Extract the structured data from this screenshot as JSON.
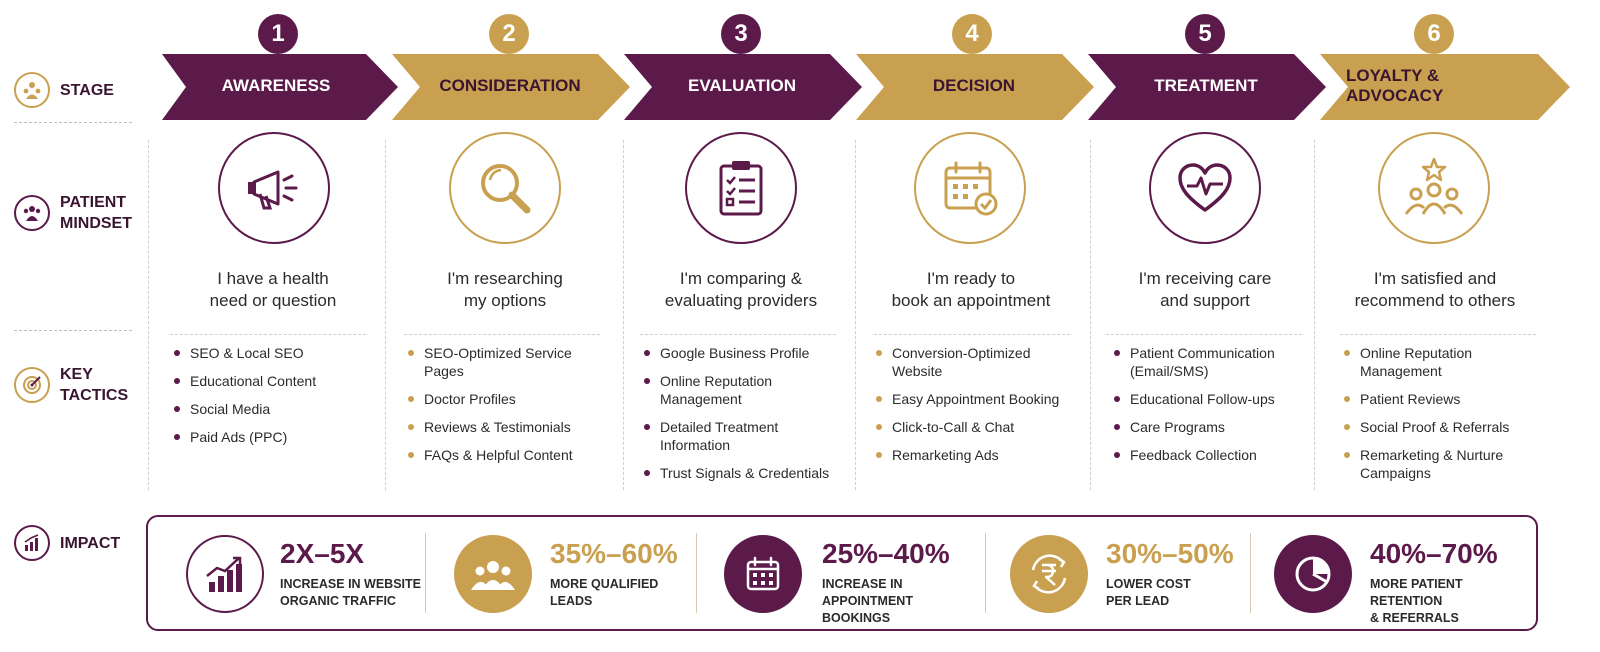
{
  "colors": {
    "plum": "#5b1a4a",
    "gold": "#c9a050",
    "plumText": "#ffffff",
    "goldText": "#3a1530"
  },
  "row_labels": {
    "stage": "STAGE",
    "mindset": [
      "PATIENT",
      "MINDSET"
    ],
    "tactics": [
      "KEY",
      "TACTICS"
    ],
    "impact": "IMPACT"
  },
  "stages": [
    {
      "num": "1",
      "title": "AWARENESS",
      "tone": "plum",
      "icon": "megaphone-icon",
      "mindset": [
        "I have a health",
        "need or question"
      ],
      "tactics": [
        "SEO & Local SEO",
        "Educational Content",
        "Social Media",
        "Paid Ads (PPC)"
      ]
    },
    {
      "num": "2",
      "title": "CONSIDERATION",
      "tone": "gold",
      "icon": "magnifier-icon",
      "mindset": [
        "I'm researching",
        "my options"
      ],
      "tactics": [
        "SEO-Optimized Service Pages",
        "Doctor Profiles",
        "Reviews & Testimonials",
        "FAQs & Helpful Content"
      ]
    },
    {
      "num": "3",
      "title": "EVALUATION",
      "tone": "plum",
      "icon": "clipboard-icon",
      "mindset": [
        "I'm comparing &",
        "evaluating providers"
      ],
      "tactics": [
        "Google Business Profile",
        "Online Reputation Management",
        "Detailed Treatment Information",
        "Trust Signals & Credentials"
      ]
    },
    {
      "num": "4",
      "title": "DECISION",
      "tone": "gold",
      "icon": "calendar-check-icon",
      "mindset": [
        "I'm ready to",
        "book an appointment"
      ],
      "tactics": [
        "Conversion-Optimized Website",
        "Easy Appointment Booking",
        "Click-to-Call & Chat",
        "Remarketing Ads"
      ]
    },
    {
      "num": "5",
      "title": "TREATMENT",
      "tone": "plum",
      "icon": "heart-pulse-icon",
      "mindset": [
        "I'm receiving care",
        "and support"
      ],
      "tactics": [
        "Patient Communication (Email/SMS)",
        "Educational Follow-ups",
        "Care Programs",
        "Feedback Collection"
      ]
    },
    {
      "num": "6",
      "title": "LOYALTY & ADVOCACY",
      "tone": "gold",
      "icon": "group-star-icon",
      "mindset": [
        "I'm satisfied and",
        "recommend to others"
      ],
      "tactics": [
        "Online Reputation Management",
        "Patient Reviews",
        "Social Proof & Referrals",
        "Remarketing & Nurture Campaigns"
      ]
    }
  ],
  "impact": [
    {
      "value": "2X–5X",
      "label": [
        "INCREASE IN WEBSITE",
        "ORGANIC TRAFFIC"
      ],
      "tone": "plum",
      "icon": "growth-chart-icon"
    },
    {
      "value": "35%–60%",
      "label": [
        "MORE QUALIFIED",
        "LEADS"
      ],
      "tone": "gold",
      "icon": "people-icon"
    },
    {
      "value": "25%–40%",
      "label": [
        "INCREASE IN APPOINTMENT",
        "BOOKINGS"
      ],
      "tone": "plum",
      "icon": "calendar-icon"
    },
    {
      "value": "30%–50%",
      "label": [
        "LOWER COST",
        "PER LEAD"
      ],
      "tone": "gold",
      "icon": "rupee-icon"
    },
    {
      "value": "40%–70%",
      "label": [
        "MORE PATIENT RETENTION",
        "& REFERRALS"
      ],
      "tone": "plum",
      "icon": "pie-chart-icon"
    }
  ]
}
